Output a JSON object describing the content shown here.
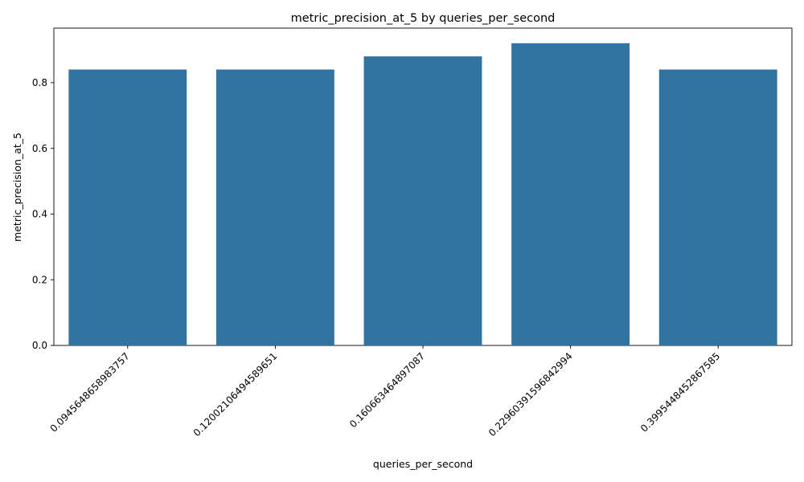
{
  "chart_data": {
    "type": "bar",
    "title": "metric_precision_at_5 by queries_per_second",
    "xlabel": "queries_per_second",
    "ylabel": "metric_precision_at_5",
    "categories": [
      "0.0945648658983757",
      "0.1200210649458965​1",
      "0.16066346489708​7",
      "0.2296039159684299​4",
      "0.3995448452867585"
    ],
    "values": [
      0.84,
      0.84,
      0.88,
      0.92,
      0.84
    ],
    "ylim": [
      0,
      0.966
    ],
    "yticks": [
      0.0,
      0.2,
      0.4,
      0.6,
      0.8
    ],
    "ytick_labels": [
      "0.0",
      "0.2",
      "0.4",
      "0.6",
      "0.8"
    ],
    "grid": false,
    "bar_color": "#3274a1"
  }
}
